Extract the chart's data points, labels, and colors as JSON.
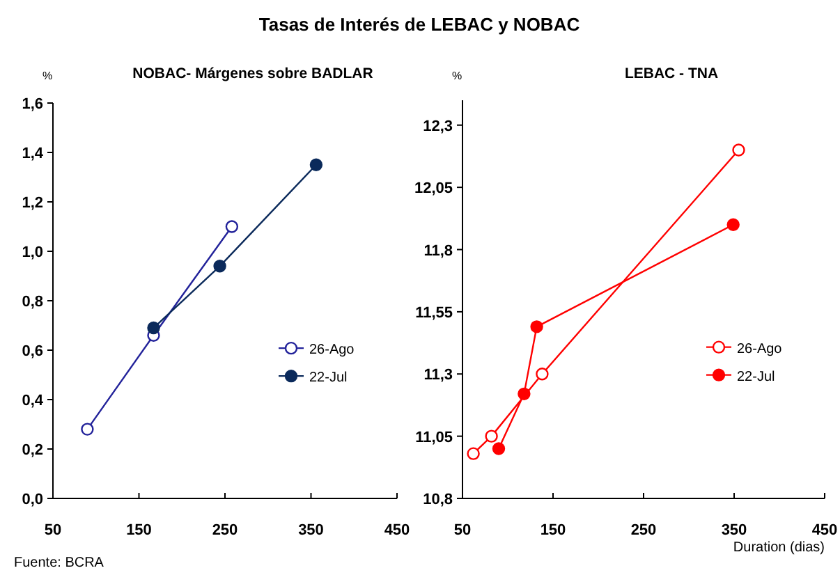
{
  "chart_data": [
    {
      "type": "line",
      "title": "Tasas de Interés de LEBAC y NOBAC",
      "subtitle": "NOBAC- Márgenes sobre BADLAR",
      "ylabel": "%",
      "annotations": [
        "Fuente: BCRA"
      ],
      "marker": "circle",
      "line_style": "solid",
      "legend": "right",
      "grid": false,
      "xlim": [
        50,
        450
      ],
      "xticks": [
        50,
        150,
        250,
        350,
        450
      ],
      "ylim": [
        0,
        1.6
      ],
      "yticks": [
        {
          "value": 0,
          "label": "0,0"
        },
        {
          "value": 0.2,
          "label": "0,2"
        },
        {
          "value": 0.4,
          "label": "0,4"
        },
        {
          "value": 0.6,
          "label": "0,6"
        },
        {
          "value": 0.8,
          "label": "0,8"
        },
        {
          "value": 1,
          "label": "1,0"
        },
        {
          "value": 1.2,
          "label": "1,2"
        },
        {
          "value": 1.4,
          "label": "1,4"
        },
        {
          "value": 1.6,
          "label": "1,6"
        }
      ],
      "series": [
        {
          "name": "26-Ago",
          "color": "#22229a",
          "x": [
            90,
            167,
            258
          ],
          "values": [
            0.28,
            0.66,
            1.1
          ]
        },
        {
          "name": "22-Jul",
          "color": "#0b2a5b",
          "x": [
            167,
            244,
            356
          ],
          "values": [
            0.69,
            0.94,
            1.35
          ]
        }
      ]
    },
    {
      "type": "line",
      "subtitle": "LEBAC - TNA",
      "ylabel": "%",
      "xlabel": "Duration (dias)",
      "marker": "circle",
      "line_style": "solid",
      "legend": "right",
      "grid": false,
      "xlim": [
        50,
        450
      ],
      "xticks": [
        50,
        150,
        250,
        350,
        450
      ],
      "ylim": [
        10.8,
        12.4
      ],
      "yticks": [
        {
          "value": 10.8,
          "label": "10,8"
        },
        {
          "value": 11.05,
          "label": "11,05"
        },
        {
          "value": 11.3,
          "label": "11,3"
        },
        {
          "value": 11.55,
          "label": "11,55"
        },
        {
          "value": 11.8,
          "label": "11,8"
        },
        {
          "value": 12.05,
          "label": "12,05"
        },
        {
          "value": 12.3,
          "label": "12,3"
        }
      ],
      "series": [
        {
          "name": "26-Ago",
          "color": "#ff0000",
          "x": [
            62,
            82,
            138,
            355
          ],
          "values": [
            10.98,
            11.05,
            11.3,
            12.2
          ]
        },
        {
          "name": "22-Jul",
          "color": "#ff0000",
          "x": [
            90,
            118,
            132,
            349
          ],
          "values": [
            11.0,
            11.22,
            11.49,
            11.9
          ]
        }
      ]
    }
  ]
}
